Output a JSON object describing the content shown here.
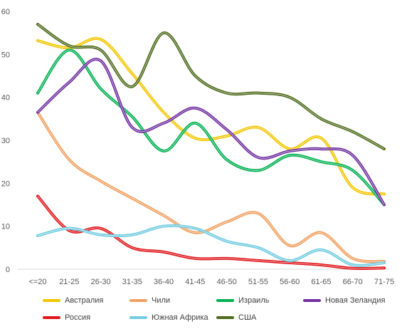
{
  "chart_data": {
    "type": "line",
    "title": "",
    "xlabel": "",
    "ylabel": "",
    "ylim": [
      0,
      60
    ],
    "yticks": [
      "0",
      "10",
      "20",
      "30",
      "40",
      "50",
      "60"
    ],
    "grid": false,
    "smooth": true,
    "legend_position": "bottom",
    "categories": [
      "<=20",
      "21-25",
      "26-30",
      "31-35",
      "36-40",
      "41-45",
      "46-50",
      "51-55",
      "56-60",
      "61-65",
      "66-70",
      "71-75"
    ],
    "series": [
      {
        "name": "Австралия",
        "color": "#F2C600",
        "values": [
          53.2,
          51.5,
          53.5,
          45.5,
          36.5,
          30.5,
          31.0,
          33.0,
          28.0,
          30.5,
          19.0,
          17.5
        ]
      },
      {
        "name": "Чили",
        "color": "#F0A060",
        "values": [
          36.5,
          25.5,
          20.5,
          16.5,
          12.5,
          8.5,
          11.0,
          13.0,
          5.5,
          8.5,
          2.5,
          1.8
        ]
      },
      {
        "name": "Израиль",
        "color": "#00B050",
        "values": [
          41.0,
          51.0,
          42.0,
          35.5,
          27.5,
          34.0,
          25.5,
          23.0,
          26.5,
          25.0,
          23.0,
          15.0
        ]
      },
      {
        "name": "Новая Зеландия",
        "color": "#7030A0",
        "values": [
          36.5,
          43.5,
          48.5,
          33.0,
          34.0,
          37.5,
          32.5,
          26.0,
          27.5,
          28.0,
          26.5,
          15.0
        ]
      },
      {
        "name": "Россия",
        "color": "#E0161B",
        "values": [
          17.0,
          9.0,
          9.5,
          5.0,
          4.0,
          2.5,
          2.5,
          2.0,
          1.5,
          1.0,
          0.2,
          0.3
        ]
      },
      {
        "name": "Южная Африка",
        "color": "#72CCE0",
        "values": [
          7.8,
          9.5,
          8.0,
          8.0,
          10.0,
          9.5,
          6.5,
          5.0,
          2.0,
          4.5,
          1.0,
          1.5
        ]
      },
      {
        "name": "США",
        "color": "#4E6B1C",
        "values": [
          57.0,
          52.0,
          51.0,
          42.5,
          55.0,
          45.0,
          41.0,
          41.0,
          40.0,
          35.0,
          32.0,
          28.0
        ]
      }
    ]
  }
}
